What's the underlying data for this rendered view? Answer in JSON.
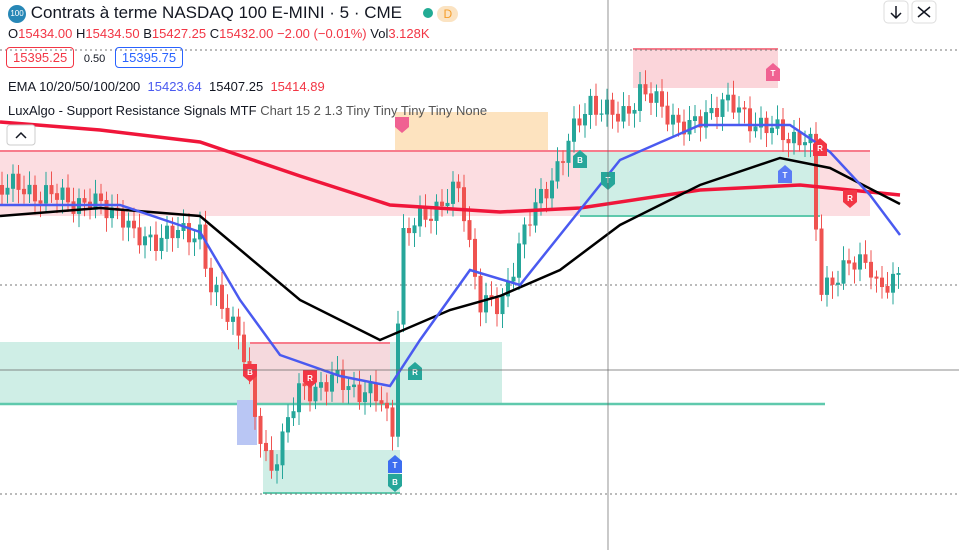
{
  "header": {
    "logo": "100",
    "title": "Contrats à terme NASDAQ 100 E-MINI · 5 · CME",
    "badge": "D"
  },
  "ohlc": {
    "o_label": "O",
    "o": "15434.00",
    "h_label": "H",
    "h": "15434.50",
    "b_label": "B",
    "b": "15427.25",
    "c_label": "C",
    "c": "15432.00",
    "change": "−2.00 (−0.01%)",
    "vol_label": "Vol",
    "vol": "3.128K"
  },
  "quote": {
    "bid": "15395.25",
    "spread": "0.50",
    "ask": "15395.75"
  },
  "ema": {
    "label": "EMA 10/20/50/100/200",
    "v1": "15423.64",
    "v2": "15407.25",
    "v3": "15414.89"
  },
  "indicator": {
    "name": "LuxAlgo - Support Resistance Signals MTF",
    "params": "Chart 15 2 1.3 Tiny Tiny Tiny Tiny None"
  },
  "markers": [
    "B",
    "T",
    "T",
    "T",
    "R",
    "R",
    "R",
    "B",
    "R",
    "B",
    "T"
  ]
}
